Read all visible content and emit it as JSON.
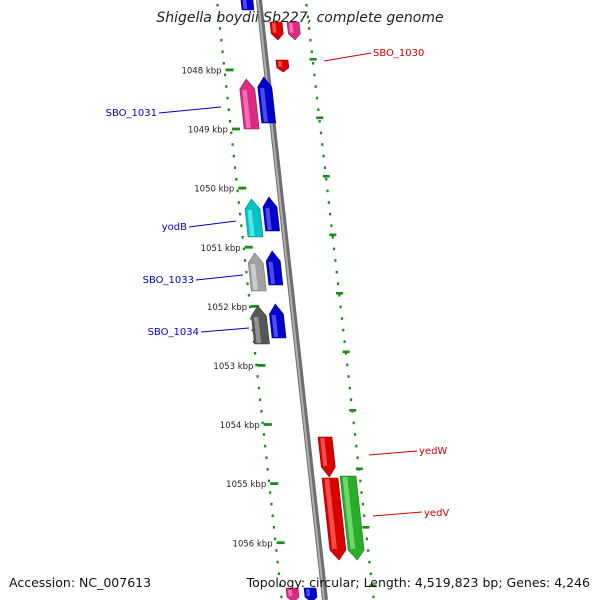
{
  "title": "Shigella boydii Sb227, complete genome",
  "footer": {
    "accession": "Accession: NC_007613",
    "topology": "Topology: circular",
    "length": "Length: 4,519,823 bp",
    "genes": "Genes: 4,246"
  },
  "kbp_labels": [
    "1048 kbp",
    "1049 kbp",
    "1050 kbp",
    "1051 kbp",
    "1052 kbp",
    "1053 kbp",
    "1054 kbp",
    "1055 kbp",
    "1056 kbp"
  ],
  "colors": {
    "forward_label": "#d40000",
    "reverse_label": "#0000c8",
    "ruler": "#1a8a1a",
    "backbone": "#8c8c8c"
  },
  "genes": {
    "forward": [
      {
        "label": "SBO_1030",
        "color": "#ff0000"
      },
      {
        "label": "yedW",
        "color": "#ff0000"
      },
      {
        "label": "yedV",
        "color": "#33cc33"
      }
    ],
    "reverse": [
      {
        "label": "SBO_1031",
        "color": "#ff3399"
      },
      {
        "label": "yodB",
        "color": "#00e5e5"
      },
      {
        "label": "SBO_1033",
        "color": "#bdbdbd"
      },
      {
        "label": "SBO_1034",
        "color": "#666666"
      }
    ]
  }
}
